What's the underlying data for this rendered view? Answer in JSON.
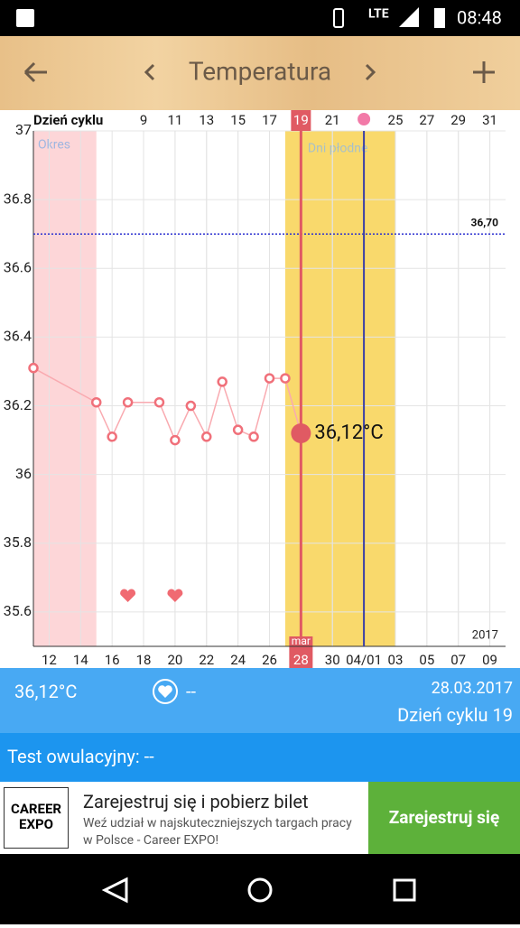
{
  "status_bar": {
    "network": "LTE",
    "time": "08:48"
  },
  "header": {
    "title": "Temperatura"
  },
  "chart_data": {
    "type": "line",
    "x_label": "Dzień cyklu",
    "series": [
      {
        "color": "#f0707a",
        "x": [
          2,
          6,
          7,
          8,
          10,
          11,
          12,
          13,
          14,
          15,
          16,
          17,
          18,
          19
        ],
        "values": [
          36.31,
          36.21,
          36.11,
          36.21,
          36.21,
          36.1,
          36.2,
          36.11,
          36.27,
          36.13,
          36.11,
          36.28,
          36.28,
          36.12
        ],
        "value_labels": [
          null,
          null,
          null,
          null,
          null,
          null,
          null,
          null,
          null,
          null,
          null,
          null,
          null,
          "36,12°C"
        ]
      }
    ],
    "xlim": [
      2,
      32
    ],
    "xticks": [
      9,
      11,
      13,
      15,
      17,
      19,
      21,
      25,
      27,
      29,
      31
    ],
    "x2ticks": [
      {
        "value": 3,
        "label": "12"
      },
      {
        "value": 5,
        "label": "14"
      },
      {
        "value": 7,
        "label": "16"
      },
      {
        "value": 9,
        "label": "18"
      },
      {
        "value": 11,
        "label": "20"
      },
      {
        "value": 13,
        "label": "22"
      },
      {
        "value": 15,
        "label": "24"
      },
      {
        "value": 17,
        "label": "26"
      },
      {
        "value": 19,
        "label": "28"
      },
      {
        "value": 21,
        "label": "30"
      },
      {
        "value": 23,
        "label": "04/01"
      },
      {
        "value": 25,
        "label": "03"
      },
      {
        "value": 27,
        "label": "05"
      },
      {
        "value": 29,
        "label": "07"
      },
      {
        "value": 31,
        "label": "09"
      }
    ],
    "ylim": [
      35.5,
      37
    ],
    "yticks": [
      35.6,
      35.8,
      36,
      36.2,
      36.4,
      36.6,
      36.8,
      37
    ],
    "grid": true,
    "selected_x": 19,
    "month_label": "mar",
    "year_label": "2017",
    "period": [
      2,
      6
    ],
    "period_label": "Okres",
    "fertile": [
      18,
      25
    ],
    "fertile_label": "Dni płodne",
    "ovulation": 23,
    "threshold": 36.7,
    "threshold_label": "36,70",
    "hearts": [
      8,
      11
    ]
  },
  "summary": {
    "temperature": "36,12°C",
    "heart_value": "--",
    "date": "28.03.2017",
    "cycle_day": "Dzień cyklu 19"
  },
  "ovulation_test": {
    "label": "Test owulacyjny: --"
  },
  "ad": {
    "logo": "CAREER EXPO",
    "title": "Zarejestruj się i pobierz bilet",
    "text": "Weź udział w najskuteczniejszych targach pracy w Polsce - Career EXPO!",
    "button": "Zarejestruj się"
  }
}
